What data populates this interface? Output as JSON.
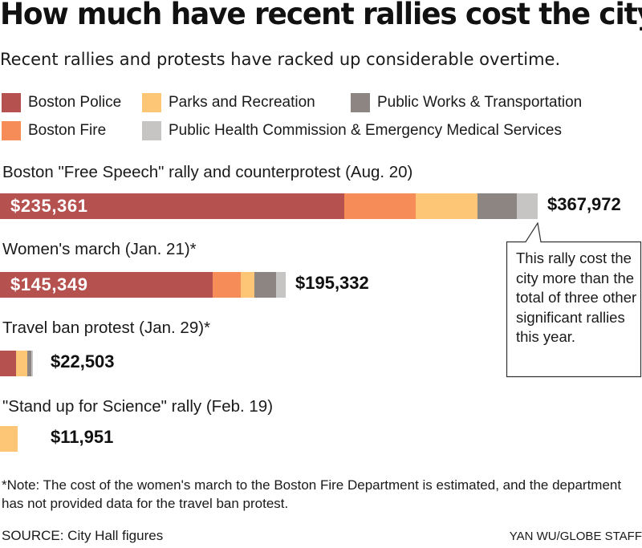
{
  "title": "How much have recent rallies cost the city?",
  "subtitle": "Recent rallies and protests have racked up considerable overtime.",
  "legend": [
    {
      "label": "Boston Police",
      "color": "#b5514f"
    },
    {
      "label": "Parks and Recreation",
      "color": "#fdc677"
    },
    {
      "label": "Public Works & Transportation",
      "color": "#8c8582"
    },
    {
      "label": "Boston Fire",
      "color": "#f68c58"
    },
    {
      "label": "Public Health Commission & Emergency Medical Services",
      "color": "#c7c5c4"
    }
  ],
  "callout": {
    "text": "This rally cost the city more than the total of three other significant rallies this year."
  },
  "note": "*Note: The cost of the women's march to the Boston Fire Department is estimated, and the department has not provided data for the travel ban protest.",
  "source": "SOURCE: City Hall figures",
  "credit": "YAN WU/GLOBE STAFF",
  "chart_data": {
    "type": "bar",
    "orientation": "horizontal",
    "stacked": true,
    "categories": [
      "Boston \"Free Speech\" rally and counterprotest (Aug. 20)",
      "Women's march (Jan. 21)*",
      "Travel ban protest (Jan. 29)*",
      "\"Stand up for Science\" rally (Feb. 19)"
    ],
    "series": [
      {
        "name": "Boston Police",
        "color": "#b5514f",
        "values": [
          235361,
          145349,
          11000,
          0
        ]
      },
      {
        "name": "Boston Fire",
        "color": "#f68c58",
        "values": [
          49000,
          19500,
          0,
          0
        ]
      },
      {
        "name": "Parks and Recreation",
        "color": "#fdc677",
        "values": [
          42500,
          9500,
          7500,
          11951
        ]
      },
      {
        "name": "Public Works & Transportation",
        "color": "#8c8582",
        "values": [
          27000,
          14500,
          3000,
          0
        ]
      },
      {
        "name": "Public Health Commission & Emergency Medical Services",
        "color": "#c7c5c4",
        "values": [
          14111,
          6483,
          1003,
          0
        ]
      }
    ],
    "segment_labels": [
      "$235,361",
      "$145,349",
      "",
      ""
    ],
    "totals": [
      367972,
      195332,
      22503,
      11951
    ],
    "total_labels": [
      "$367,972",
      "$195,332",
      "$22,503",
      "$11,951"
    ],
    "legend_position": "top",
    "grid": false,
    "xlim": [
      0,
      367972
    ]
  }
}
